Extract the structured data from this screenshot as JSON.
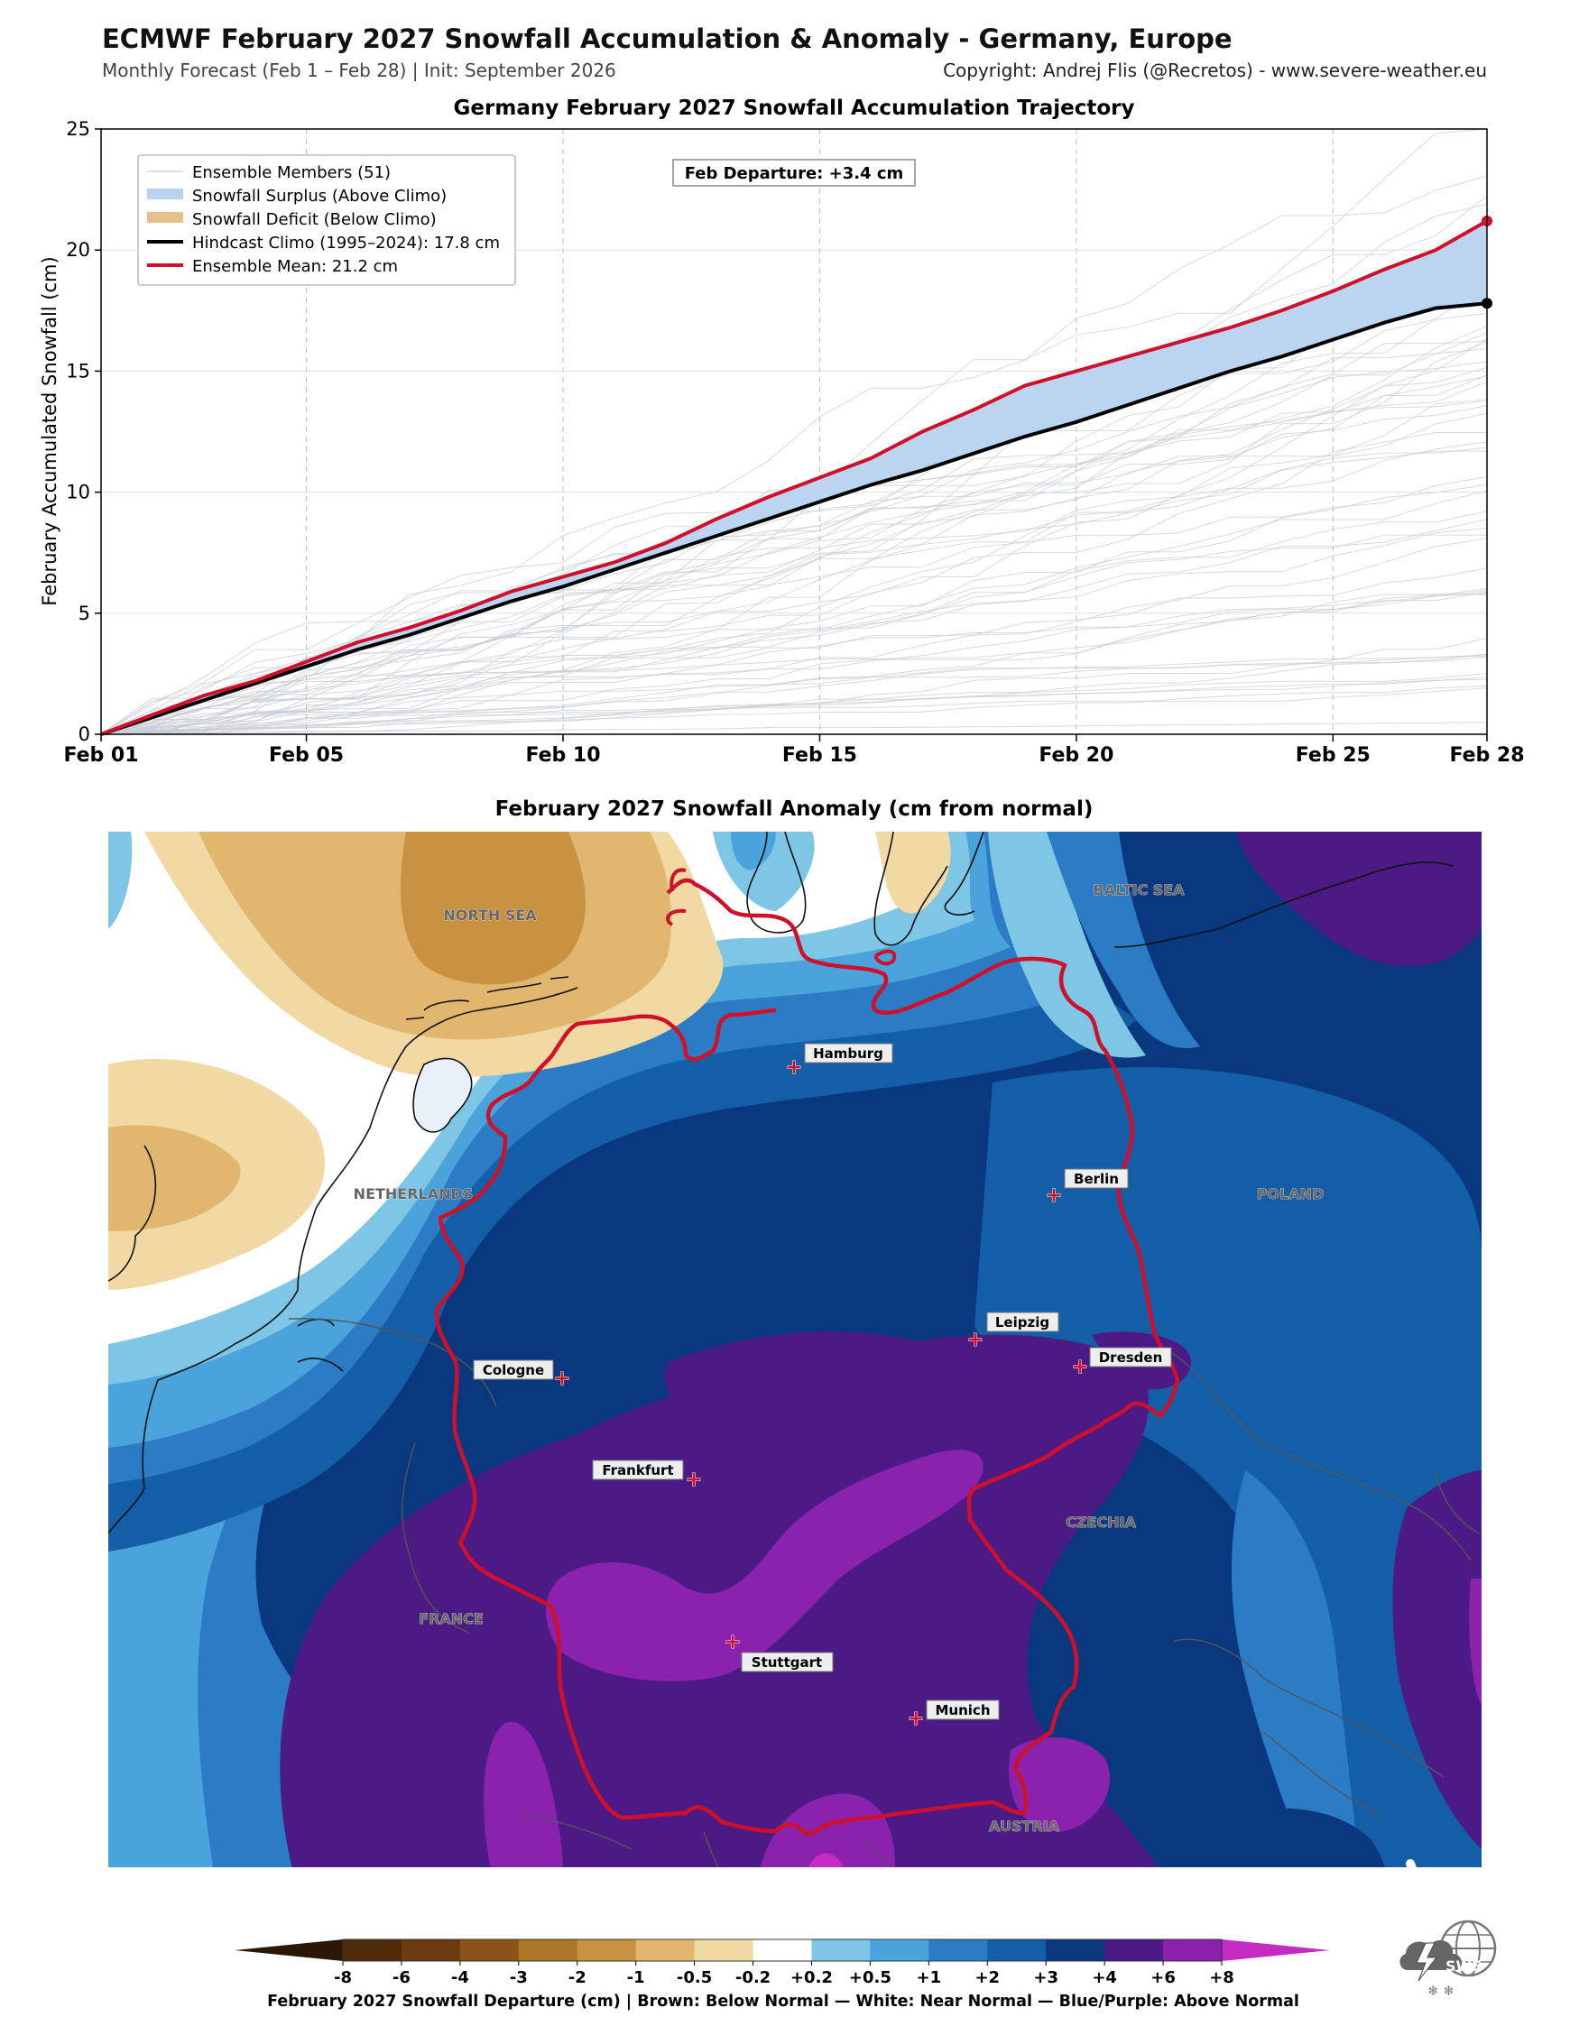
{
  "header": {
    "title": "ECMWF February 2027 Snowfall Accumulation & Anomaly - Germany, Europe",
    "subtitle": "Monthly Forecast (Feb 1 – Feb 28) | Init: September 2026",
    "copyright": "Copyright: Andrej Flis (@Recretos) - www.severe-weather.eu"
  },
  "chart_data": [
    {
      "type": "line",
      "title": "Germany February 2027 Snowfall Accumulation Trajectory",
      "ylabel": "February Accumulated Snowfall (cm)",
      "xlabel": "",
      "xlim": [
        1,
        28
      ],
      "ylim": [
        0,
        25
      ],
      "x_ticks": [
        1,
        5,
        10,
        15,
        20,
        25,
        28
      ],
      "x_tick_labels": [
        "Feb 01",
        "Feb 05",
        "Feb 10",
        "Feb 15",
        "Feb 20",
        "Feb 25",
        "Feb 28"
      ],
      "y_ticks": [
        0,
        5,
        10,
        15,
        20,
        25
      ],
      "grid": true,
      "legend_position": "top-left",
      "annotation": "Feb Departure: +3.4 cm",
      "legend": [
        {
          "label": "Ensemble Members (51)",
          "color": "#c8ced6"
        },
        {
          "label": "Snowfall Surplus (Above Climo)",
          "color": "#b7d3f0"
        },
        {
          "label": "Snowfall Deficit (Below Climo)",
          "color": "#e6c08a"
        },
        {
          "label": "Hindcast Climo (1995–2024): 17.8 cm",
          "color": "#000000"
        },
        {
          "label": "Ensemble Mean: 21.2 cm",
          "color": "#d0102a"
        }
      ],
      "x": [
        1,
        2,
        3,
        4,
        5,
        6,
        7,
        8,
        9,
        10,
        11,
        12,
        13,
        14,
        15,
        16,
        17,
        18,
        19,
        20,
        21,
        22,
        23,
        24,
        25,
        26,
        27,
        28
      ],
      "series": [
        {
          "name": "Ensemble Mean: 21.2 cm",
          "color": "#d0102a",
          "values": [
            0.0,
            0.8,
            1.6,
            2.2,
            3.0,
            3.8,
            4.4,
            5.1,
            5.9,
            6.5,
            7.1,
            7.9,
            8.9,
            9.8,
            10.6,
            11.4,
            12.5,
            13.4,
            14.4,
            15.0,
            15.6,
            16.2,
            16.8,
            17.5,
            18.3,
            19.2,
            20.0,
            21.2
          ]
        },
        {
          "name": "Hindcast Climo (1995–2024): 17.8 cm",
          "color": "#000000",
          "values": [
            0.0,
            0.7,
            1.4,
            2.1,
            2.8,
            3.5,
            4.1,
            4.8,
            5.5,
            6.1,
            6.8,
            7.5,
            8.2,
            8.9,
            9.6,
            10.3,
            10.9,
            11.6,
            12.3,
            12.9,
            13.6,
            14.3,
            15.0,
            15.6,
            16.3,
            17.0,
            17.6,
            17.8
          ]
        }
      ]
    },
    {
      "type": "heatmap",
      "title": "February 2027 Snowfall Anomaly (cm from normal)",
      "colorbar_label": "February 2027 Snowfall Departure (cm)  |  Brown: Below Normal  —  White: Near Normal  —  Blue/Purple: Above Normal",
      "colorbar_ticks": [
        "-8",
        "-6",
        "-4",
        "-3",
        "-2",
        "-1",
        "-0.5",
        "-0.2",
        "+0.2",
        "+0.5",
        "+1",
        "+2",
        "+3",
        "+4",
        "+6",
        "+8"
      ],
      "colorbar_colors": [
        "#2a1706",
        "#4e2a0b",
        "#6c3b0f",
        "#8c5319",
        "#ae7428",
        "#c99241",
        "#e1b66f",
        "#f1d9a3",
        "#ffffff",
        "#7ec6e6",
        "#4aa3db",
        "#2b7cc4",
        "#145ea8",
        "#0a387f",
        "#4b1a85",
        "#8a22ad",
        "#c32bc3"
      ],
      "regions": [
        "NORTH SEA",
        "BALTIC SEA",
        "NETHERLANDS",
        "POLAND",
        "CZECHIA",
        "FRANCE",
        "AUSTRIA"
      ],
      "cities": [
        "Hamburg",
        "Berlin",
        "Leipzig",
        "Dresden",
        "Cologne",
        "Frankfurt",
        "Stuttgart",
        "Munich"
      ]
    }
  ],
  "logo": {
    "text": "SWE"
  }
}
